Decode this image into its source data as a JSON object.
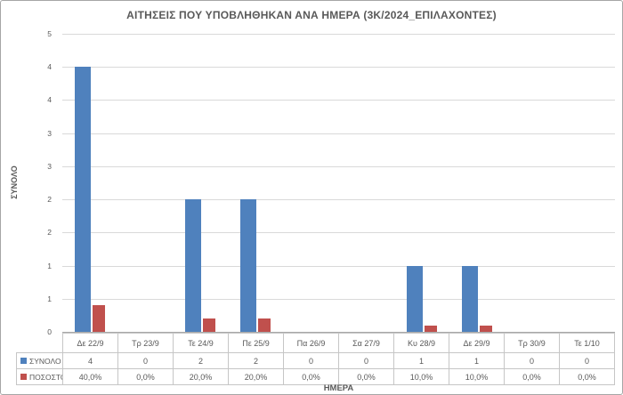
{
  "title": "ΑΙΤΗΣΕΙΣ ΠΟΥ ΥΠΟΒΛΗΘΗΚΑΝ ΑΝΑ ΗΜΕΡΑ (3Κ/2024_ΕΠΙΛΑΧΟΝΤΕΣ)",
  "x_axis": {
    "title": "ΗΜΕΡΑ"
  },
  "y_axis": {
    "title": "ΣΥΝΟΛΟ",
    "tick_labels_top_to_bottom": [
      "5",
      "4",
      "4",
      "3",
      "3",
      "2",
      "2",
      "1",
      "1",
      "0"
    ]
  },
  "chart_data": {
    "type": "bar",
    "title": "ΑΙΤΗΣΕΙΣ ΠΟΥ ΥΠΟΒΛΗΘΗΚΑΝ ΑΝΑ ΗΜΕΡΑ (3Κ/2024_ΕΠΙΛΑΧΟΝΤΕΣ)",
    "xlabel": "ΗΜΕΡΑ",
    "ylabel": "ΣΥΝΟΛΟ",
    "ylim": [
      0,
      4.5
    ],
    "y_major_unit": 0.5,
    "grid": true,
    "legend_position": "data-table-left",
    "categories": [
      "Δε 22/9",
      "Τρ 23/9",
      "Τε 24/9",
      "Πε 25/9",
      "Πα 26/9",
      "Σα 27/9",
      "Κυ 28/9",
      "Δε 29/9",
      "Τρ 30/9",
      "Τε 1/10"
    ],
    "series": [
      {
        "name": "ΣΥΝΟΛΟ",
        "color": "#4F81BD",
        "values": [
          4,
          0,
          2,
          2,
          0,
          0,
          1,
          1,
          0,
          0
        ],
        "display_labels": [
          "4",
          "0",
          "2",
          "2",
          "0",
          "0",
          "1",
          "1",
          "0",
          "0"
        ]
      },
      {
        "name": "ΠΟΣΟΣΤΟ",
        "color": "#C0504D",
        "percent_values": [
          40.0,
          0.0,
          20.0,
          20.0,
          0.0,
          0.0,
          10.0,
          10.0,
          0.0,
          0.0
        ],
        "values": [
          0.4,
          0,
          0.2,
          0.2,
          0,
          0,
          0.1,
          0.1,
          0,
          0
        ],
        "display_labels": [
          "40,0%",
          "0,0%",
          "20,0%",
          "20,0%",
          "0,0%",
          "0,0%",
          "10,0%",
          "10,0%",
          "0,0%",
          "0,0%"
        ]
      }
    ]
  },
  "colors": {
    "bar_blue": "#4F81BD",
    "bar_red": "#C0504D",
    "gridline": "#D9D9D9",
    "axis_line": "#A9A9A9",
    "table_border": "#C6C6C6",
    "text": "#595959",
    "chart_border": "#A6A6A6",
    "background": "#FFFFFF"
  }
}
